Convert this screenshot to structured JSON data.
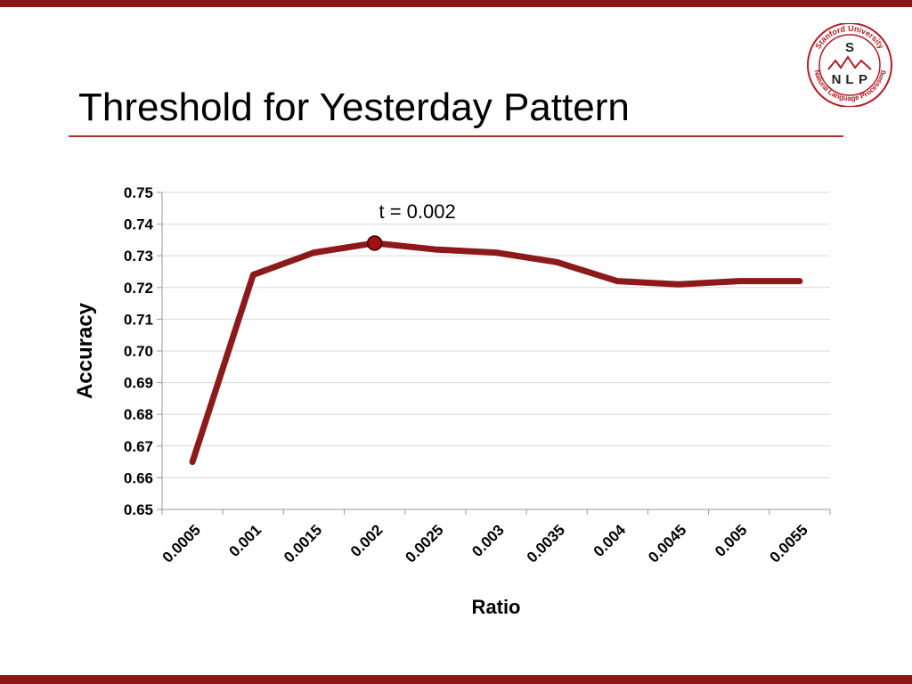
{
  "slide": {
    "title": "Threshold for Yesterday Pattern",
    "accent_color": "#8c1515"
  },
  "logo": {
    "top_text": "Stanford University",
    "bottom_text": "Natural Language Processing",
    "letters": [
      "S",
      "N",
      "L",
      "P"
    ]
  },
  "chart_data": {
    "type": "line",
    "title": "",
    "xlabel": "Ratio",
    "ylabel": "Accuracy",
    "categories": [
      "0.0005",
      "0.001",
      "0.0015",
      "0.002",
      "0.0025",
      "0.003",
      "0.0035",
      "0.004",
      "0.0045",
      "0.005",
      "0.0055"
    ],
    "y_ticks": [
      "0.65",
      "0.66",
      "0.67",
      "0.68",
      "0.69",
      "0.70",
      "0.71",
      "0.72",
      "0.73",
      "0.74",
      "0.75"
    ],
    "ylim": [
      0.65,
      0.75
    ],
    "grid": true,
    "legend": "none",
    "series": [
      {
        "color": "#8c1a1a",
        "values": [
          0.665,
          0.724,
          0.731,
          0.734,
          0.732,
          0.731,
          0.728,
          0.722,
          0.721,
          0.722,
          0.722
        ]
      }
    ],
    "annotation": {
      "text": "t = 0.002",
      "category": "0.002",
      "value": 0.734
    }
  }
}
